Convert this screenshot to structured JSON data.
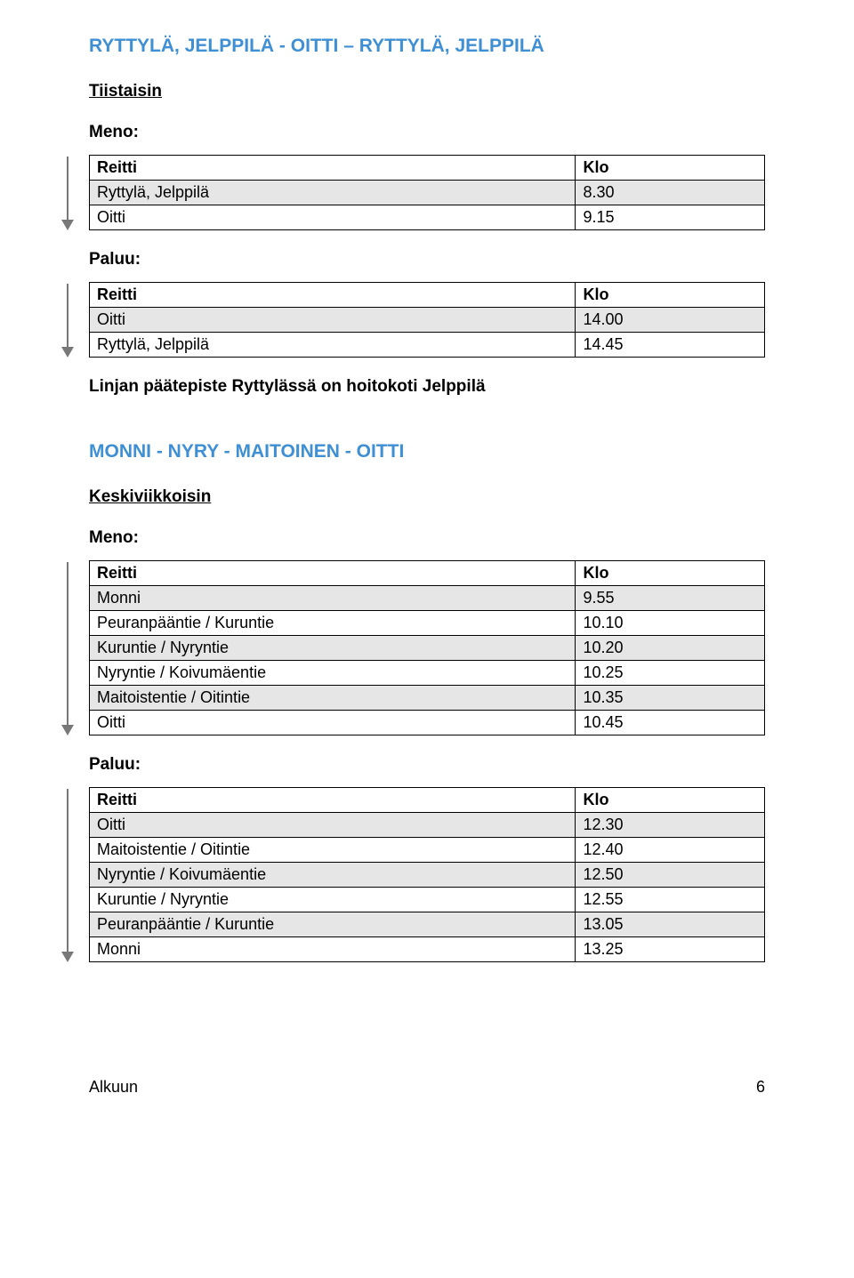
{
  "route1": {
    "title": "RYTTYLÄ, JELPPILÄ - OITTI – RYTTYLÄ, JELPPILÄ",
    "day": "Tiistaisin",
    "menoLabel": "Meno:",
    "paluuLabel": "Paluu:",
    "header": {
      "reitti": "Reitti",
      "klo": "Klo"
    },
    "meno": [
      {
        "reitti": "Ryttylä, Jelppilä",
        "klo": "8.30"
      },
      {
        "reitti": "Oitti",
        "klo": "9.15"
      }
    ],
    "paluu": [
      {
        "reitti": "Oitti",
        "klo": "14.00"
      },
      {
        "reitti": "Ryttylä, Jelppilä",
        "klo": "14.45"
      }
    ],
    "note": "Linjan päätepiste Ryttylässä on hoitokoti Jelppilä"
  },
  "route2": {
    "title": "MONNI - NYRY - MAITOINEN - OITTI",
    "day": "Keskiviikkoisin",
    "menoLabel": "Meno:",
    "paluuLabel": "Paluu:",
    "header": {
      "reitti": "Reitti",
      "klo": "Klo"
    },
    "meno": [
      {
        "reitti": "Monni",
        "klo": "9.55"
      },
      {
        "reitti": "Peuranpääntie / Kuruntie",
        "klo": "10.10"
      },
      {
        "reitti": "Kuruntie / Nyryntie",
        "klo": "10.20"
      },
      {
        "reitti": "Nyryntie / Koivumäentie",
        "klo": "10.25"
      },
      {
        "reitti": "Maitoistentie / Oitintie",
        "klo": "10.35"
      },
      {
        "reitti": "Oitti",
        "klo": "10.45"
      }
    ],
    "paluu": [
      {
        "reitti": "Oitti",
        "klo": "12.30"
      },
      {
        "reitti": "Maitoistentie / Oitintie",
        "klo": "12.40"
      },
      {
        "reitti": "Nyryntie / Koivumäentie",
        "klo": "12.50"
      },
      {
        "reitti": "Kuruntie / Nyryntie",
        "klo": "12.55"
      },
      {
        "reitti": "Peuranpääntie / Kuruntie",
        "klo": "13.05"
      },
      {
        "reitti": "Monni",
        "klo": "13.25"
      }
    ]
  },
  "footer": {
    "link": "Alkuun",
    "page": "6"
  },
  "colors": {
    "titleColor": "#3f8fd4",
    "stripeColor": "#e6e6e6",
    "arrowColor": "#787878",
    "borderColor": "#000000"
  }
}
